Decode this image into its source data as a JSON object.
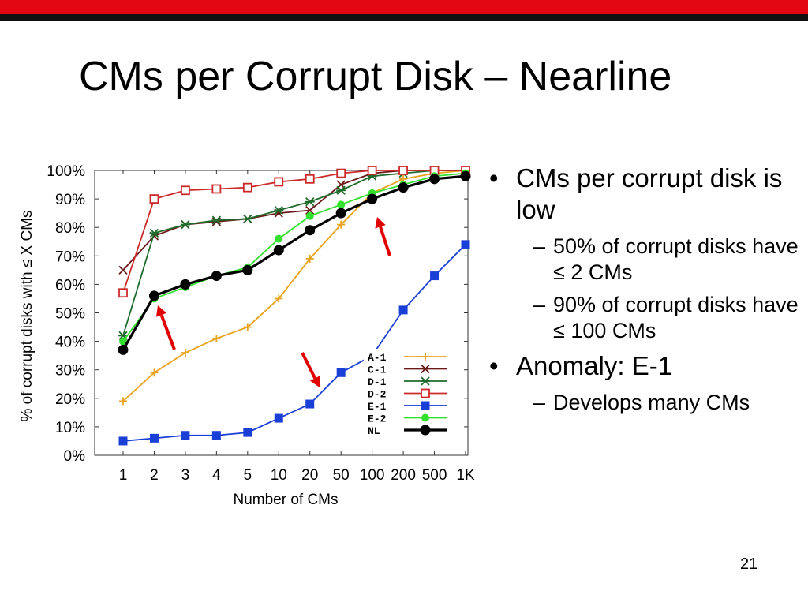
{
  "slide": {
    "title": "CMs per Corrupt Disk – Nearline",
    "page_number": "21",
    "colors": {
      "top_bar": "#e30613",
      "top_line": "#111111",
      "arrow": "#e00000"
    }
  },
  "bullets": [
    {
      "level": 1,
      "text": "CMs per corrupt disk is low"
    },
    {
      "level": 2,
      "text": "50% of corrupt disks have ≤ 2 CMs"
    },
    {
      "level": 2,
      "text": "90% of corrupt disks have ≤ 100 CMs"
    },
    {
      "level": 1,
      "text": "Anomaly: E-1"
    },
    {
      "level": 2,
      "text": "Develops many CMs"
    }
  ],
  "chart_data": {
    "type": "line",
    "title": "",
    "xlabel": "Number of CMs",
    "ylabel": "% of  corrupt disks with ≤ X CMs",
    "categories": [
      "1",
      "2",
      "3",
      "4",
      "5",
      "10",
      "20",
      "50",
      "100",
      "200",
      "500",
      "1K"
    ],
    "yticks": [
      "0%",
      "10%",
      "20%",
      "30%",
      "40%",
      "50%",
      "60%",
      "70%",
      "80%",
      "90%",
      "100%"
    ],
    "ylim": [
      0,
      100
    ],
    "grid": false,
    "legend_position": "inside-bottom-right",
    "series": [
      {
        "name": "A-1",
        "color": "#e8a31c",
        "marker": "plus",
        "values": [
          19,
          29,
          36,
          41,
          45,
          55,
          69,
          81,
          92,
          97,
          99,
          100
        ]
      },
      {
        "name": "C-1",
        "color": "#6b1a1a",
        "marker": "x",
        "values": [
          65,
          77,
          81,
          82,
          83,
          85,
          86,
          95,
          99,
          100,
          100,
          100
        ]
      },
      {
        "name": "D-1",
        "color": "#1e6b2c",
        "marker": "star",
        "values": [
          42,
          78,
          81,
          82.5,
          83,
          86,
          89,
          93,
          98,
          99,
          100,
          100
        ]
      },
      {
        "name": "D-2",
        "color": "#cc2a2a",
        "marker": "square-open",
        "values": [
          57,
          90,
          93,
          93.5,
          94,
          96,
          97,
          99,
          100,
          100,
          100,
          100
        ]
      },
      {
        "name": "E-1",
        "color": "#1a3fd6",
        "marker": "square",
        "values": [
          5,
          6,
          7,
          7,
          8,
          13,
          18,
          29,
          35,
          51,
          63,
          74
        ]
      },
      {
        "name": "E-2",
        "color": "#33e02d",
        "marker": "circle",
        "values": [
          40,
          55,
          59,
          63,
          66,
          76,
          84,
          88,
          92,
          95,
          98,
          99
        ]
      },
      {
        "name": "NL",
        "color": "#000000",
        "marker": "circle-big",
        "values": [
          37,
          56,
          60,
          63,
          65,
          72,
          79,
          85,
          90,
          94,
          97,
          98
        ]
      }
    ],
    "annotations": [
      {
        "type": "arrow",
        "points_to": {
          "x": "2",
          "y": 56
        }
      },
      {
        "type": "arrow",
        "points_to": {
          "x": "20",
          "y": 25
        }
      },
      {
        "type": "arrow",
        "points_to": {
          "x": "100",
          "y": 92
        }
      }
    ]
  }
}
